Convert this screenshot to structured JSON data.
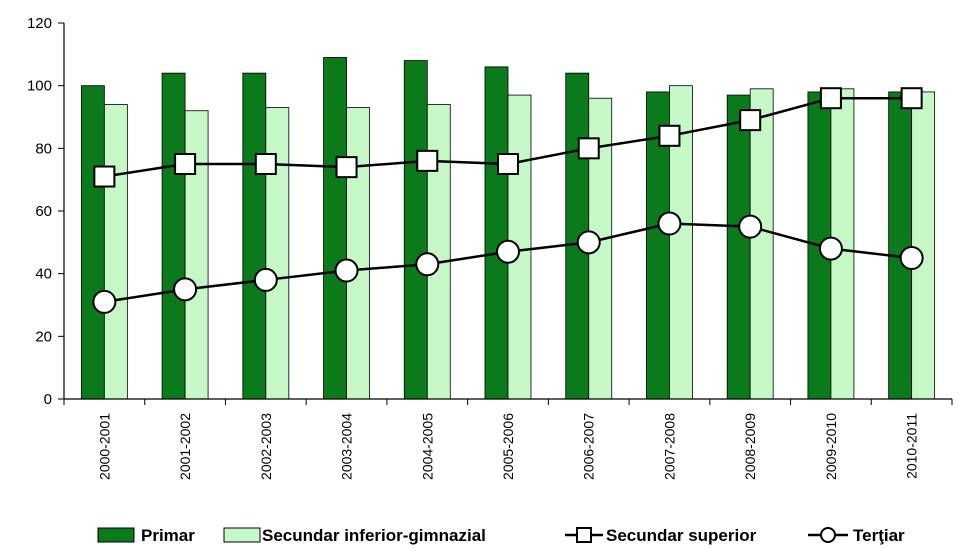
{
  "chart_data": {
    "type": "bar",
    "categories": [
      "2000-2001",
      "2001-2002",
      "2002-2003",
      "2003-2004",
      "2004-2005",
      "2005-2006",
      "2006-2007",
      "2007-2008",
      "2008-2009",
      "2009-2010",
      "2010-2011"
    ],
    "series": [
      {
        "name": "Primar",
        "type": "bar",
        "color": "#0a7a1a",
        "values": [
          100,
          104,
          104,
          109,
          108,
          106,
          104,
          98,
          97,
          98,
          98
        ]
      },
      {
        "name": "Secundar inferior-gimnazial",
        "type": "bar",
        "color": "#c6f7c6",
        "values": [
          94,
          92,
          93,
          93,
          94,
          97,
          96,
          100,
          99,
          99,
          98
        ]
      },
      {
        "name": "Secundar superior",
        "type": "line",
        "marker": "square",
        "values": [
          71,
          75,
          75,
          74,
          76,
          75,
          80,
          84,
          89,
          96,
          96
        ]
      },
      {
        "name": "Terţiar",
        "type": "line",
        "marker": "circle",
        "values": [
          31,
          35,
          38,
          41,
          43,
          47,
          50,
          56,
          55,
          48,
          45
        ]
      }
    ],
    "y_ticks": [
      "0",
      "20",
      "40",
      "60",
      "80",
      "100",
      "120"
    ],
    "ylim": [
      0,
      120
    ],
    "grid": false,
    "legend_position": "bottom"
  }
}
